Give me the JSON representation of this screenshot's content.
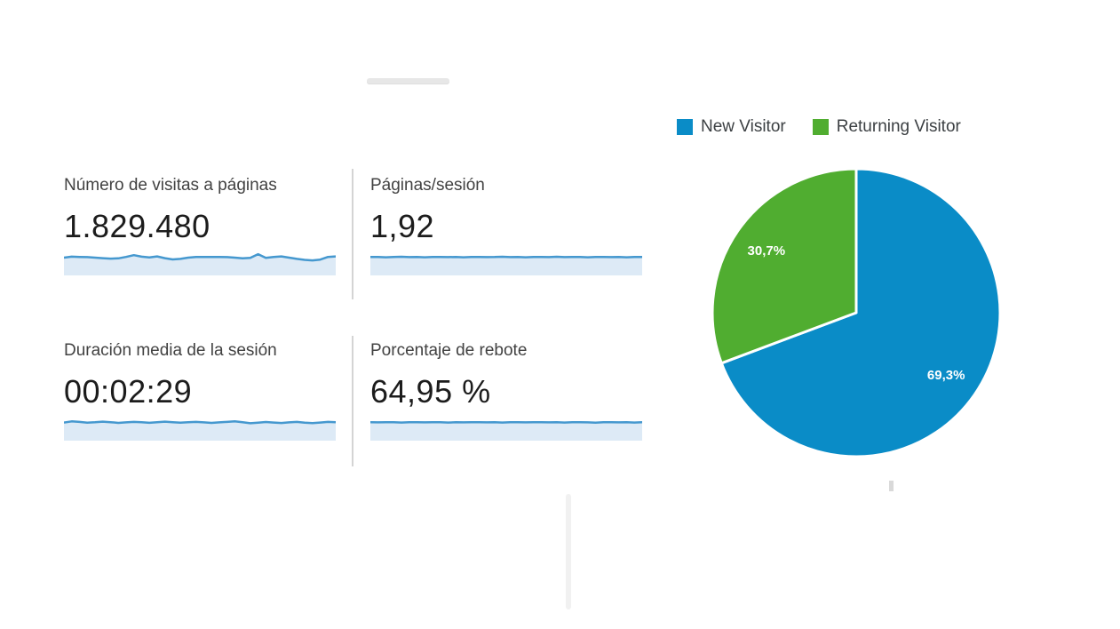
{
  "metrics": {
    "cards": [
      {
        "label": "Número de visitas a páginas",
        "value": "1.829.480"
      },
      {
        "label": "Páginas/sesión",
        "value": "1,92"
      },
      {
        "label": "Duración media de la sesión",
        "value": "00:02:29"
      },
      {
        "label": "Porcentaje de rebote",
        "value": "64,95 %"
      }
    ],
    "colors": {
      "sparkline_stroke": "#4598cf",
      "sparkline_fill": "#ddeaf6",
      "label_text": "#424242",
      "value_text": "#1c1c1c"
    }
  },
  "chart_data": [
    {
      "type": "pie",
      "title": "",
      "legend_position": "top",
      "start_angle_deg": 0,
      "direction": "clockwise",
      "slices": [
        {
          "label": "New Visitor",
          "value": 69.3,
          "display": "69,3%",
          "color": "#0a8cc7"
        },
        {
          "label": "Returning Visitor",
          "value": 30.7,
          "display": "30,7%",
          "color": "#50ad30"
        }
      ]
    },
    {
      "type": "area",
      "title": "Número de visitas a páginas — sparkline (axis unlabeled, normalized)",
      "y_normalized": [
        0.5,
        0.58,
        0.56,
        0.54,
        0.5,
        0.46,
        0.42,
        0.44,
        0.56,
        0.7,
        0.58,
        0.52,
        0.6,
        0.46,
        0.36,
        0.4,
        0.5,
        0.55,
        0.56,
        0.55,
        0.56,
        0.54,
        0.5,
        0.44,
        0.48,
        0.78,
        0.48,
        0.56,
        0.6,
        0.5,
        0.4,
        0.32,
        0.28,
        0.34,
        0.56,
        0.6
      ]
    },
    {
      "type": "area",
      "title": "Páginas/sesión — sparkline (axis unlabeled, normalized)",
      "y_normalized": [
        0.55,
        0.56,
        0.53,
        0.55,
        0.57,
        0.54,
        0.55,
        0.53,
        0.56,
        0.55,
        0.54,
        0.56,
        0.53,
        0.55,
        0.56,
        0.54,
        0.55,
        0.57,
        0.54,
        0.55,
        0.53,
        0.56,
        0.55,
        0.54,
        0.57,
        0.54,
        0.55,
        0.56,
        0.53,
        0.55,
        0.56,
        0.54,
        0.55,
        0.53,
        0.56,
        0.55
      ]
    },
    {
      "type": "area",
      "title": "Duración media de la sesión — sparkline (axis unlabeled, normalized)",
      "y_normalized": [
        0.52,
        0.62,
        0.58,
        0.52,
        0.55,
        0.6,
        0.56,
        0.5,
        0.54,
        0.58,
        0.55,
        0.51,
        0.56,
        0.6,
        0.56,
        0.52,
        0.55,
        0.58,
        0.54,
        0.5,
        0.54,
        0.58,
        0.62,
        0.55,
        0.47,
        0.52,
        0.57,
        0.53,
        0.49,
        0.54,
        0.58,
        0.52,
        0.48,
        0.53,
        0.58,
        0.55
      ]
    },
    {
      "type": "area",
      "title": "Porcentaje de rebote — sparkline (axis unlabeled, normalized)",
      "y_normalized": [
        0.55,
        0.54,
        0.56,
        0.55,
        0.53,
        0.55,
        0.56,
        0.54,
        0.55,
        0.56,
        0.53,
        0.55,
        0.54,
        0.56,
        0.55,
        0.54,
        0.55,
        0.53,
        0.55,
        0.56,
        0.54,
        0.55,
        0.56,
        0.54,
        0.55,
        0.53,
        0.55,
        0.56,
        0.54,
        0.52,
        0.55,
        0.56,
        0.54,
        0.55,
        0.53,
        0.55
      ]
    }
  ]
}
